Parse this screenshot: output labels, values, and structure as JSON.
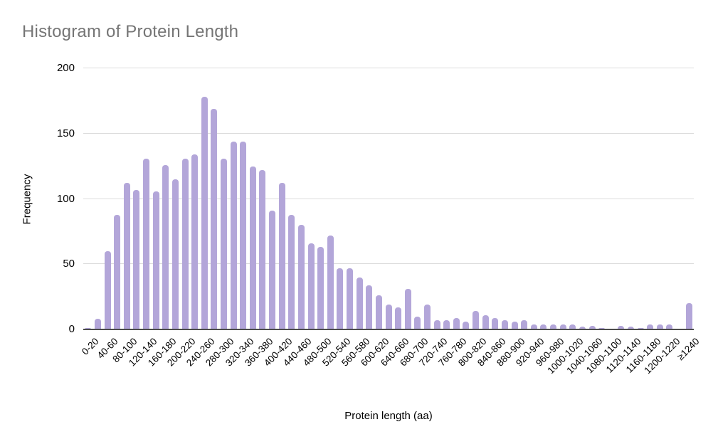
{
  "chart_data": {
    "type": "bar",
    "title": "Histogram of Protein Length",
    "xlabel": "Protein length (aa)",
    "ylabel": "Frequency",
    "ylim": [
      0,
      200
    ],
    "yticks": [
      0,
      50,
      100,
      150,
      200
    ],
    "grid": true,
    "legend": "none",
    "bar_color": "#b3a6d9",
    "bin_width_aa": 20,
    "x_tick_every": 2,
    "x_tick_labels": [
      "0-20",
      "40-60",
      "80-100",
      "120-140",
      "160-180",
      "200-220",
      "240-260",
      "280-300",
      "320-340",
      "360-380",
      "400-420",
      "440-460",
      "480-500",
      "520-540",
      "560-580",
      "600-620",
      "640-660",
      "680-700",
      "720-740",
      "760-780",
      "800-820",
      "840-860",
      "880-900",
      "920-940",
      "960-980",
      "1000-1020",
      "1040-1060",
      "1080-1100",
      "1120-1140",
      "1160-1180",
      "1200-1220",
      "≥1240"
    ],
    "values": [
      1,
      8,
      60,
      88,
      112,
      107,
      131,
      106,
      126,
      115,
      131,
      134,
      178,
      169,
      131,
      144,
      144,
      125,
      122,
      91,
      112,
      88,
      80,
      66,
      63,
      72,
      47,
      47,
      40,
      34,
      26,
      19,
      17,
      31,
      10,
      19,
      7,
      7,
      9,
      6,
      14,
      11,
      9,
      7,
      6,
      7,
      4,
      4,
      4,
      4,
      4,
      2,
      3,
      1,
      0,
      3,
      2,
      1,
      4,
      4,
      4,
      0,
      20
    ]
  }
}
